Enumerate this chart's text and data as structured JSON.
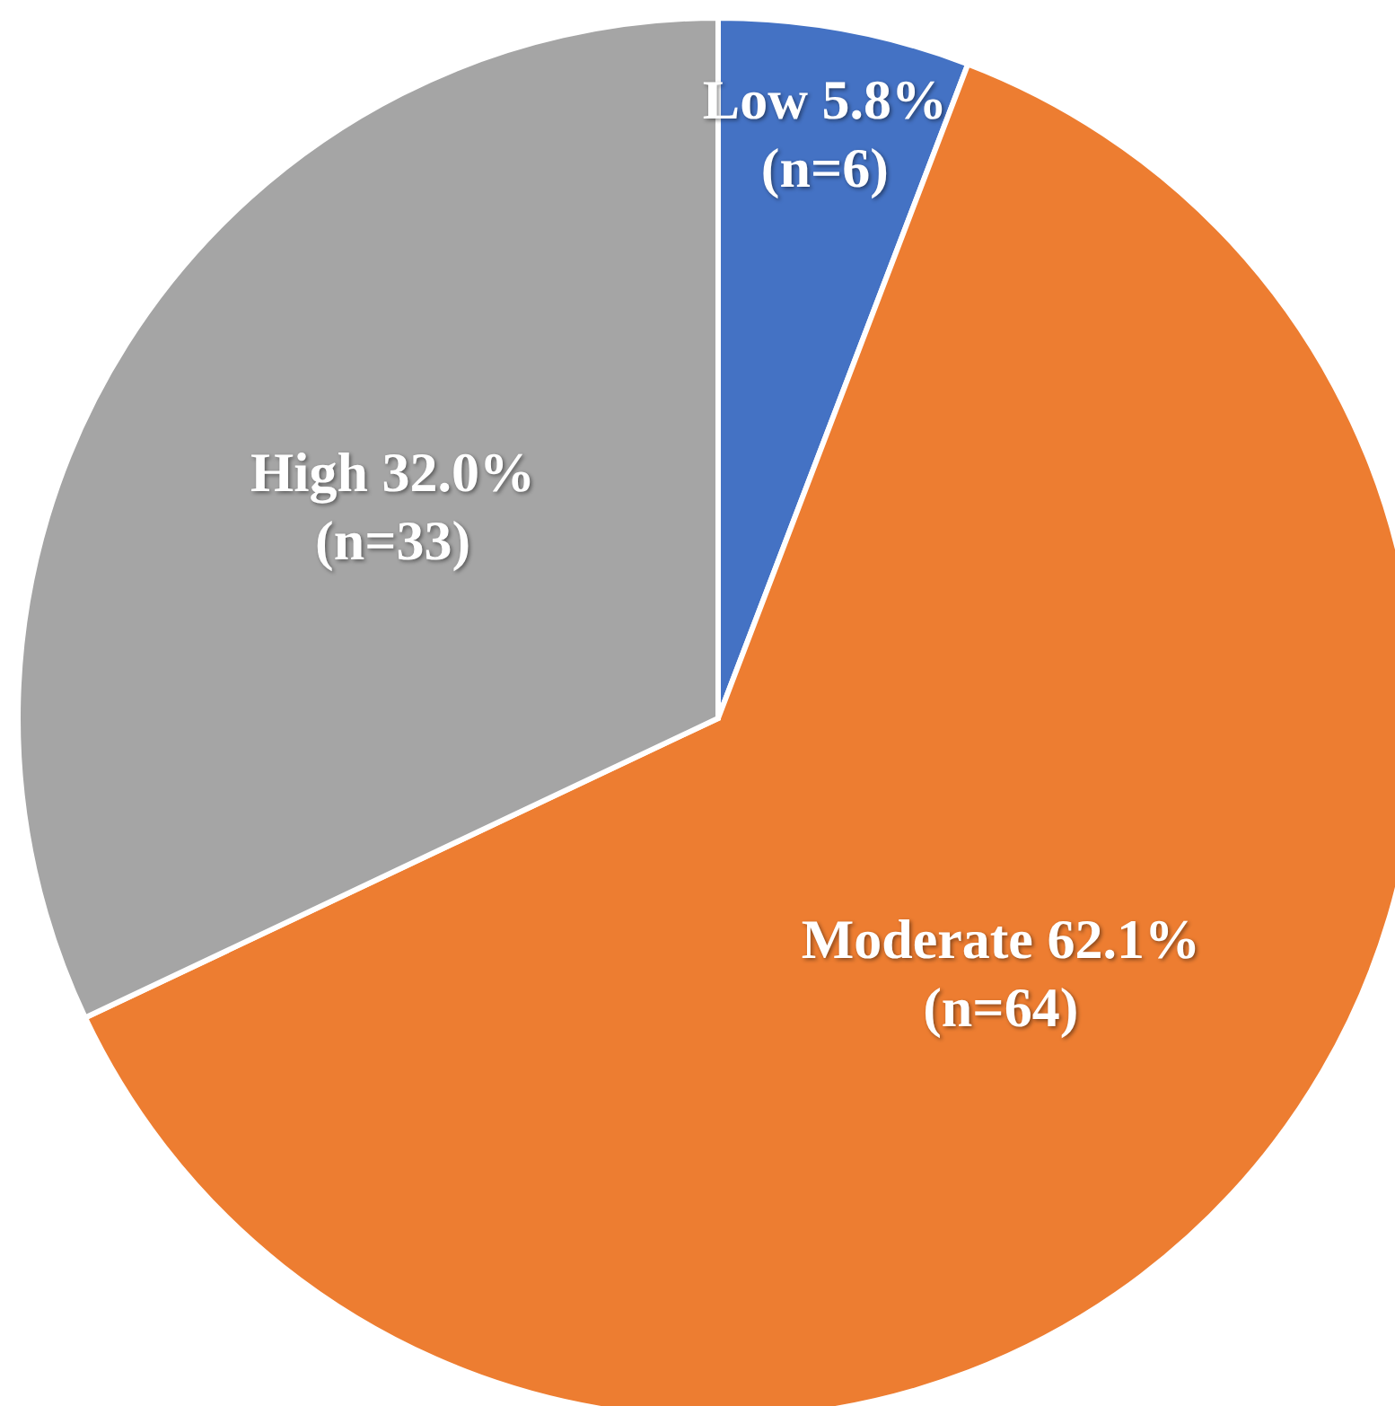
{
  "chart_data": {
    "type": "pie",
    "categories": [
      "Low",
      "Moderate",
      "High"
    ],
    "values": [
      5.8,
      62.1,
      32.0
    ],
    "colors": [
      "#4472c4",
      "#ed7d31",
      "#a5a5a5"
    ],
    "value_labels": [
      "5.8%\n(n=6)",
      "62.1%\n(n=64)",
      "32.0%\n(n=33)"
    ]
  }
}
